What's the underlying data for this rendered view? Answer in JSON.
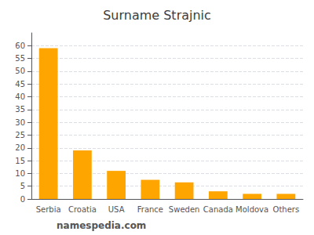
{
  "chart_data": {
    "type": "bar",
    "title": "Surname Strajnic",
    "categories": [
      "Serbia",
      "Croatia",
      "USA",
      "France",
      "Sweden",
      "Canada",
      "Moldova",
      "Others"
    ],
    "values": [
      59,
      19,
      11,
      7.5,
      6.5,
      3,
      2,
      2
    ],
    "color": "#FFA500",
    "ylim": [
      0,
      65
    ],
    "yticks": [
      0,
      5,
      10,
      15,
      20,
      25,
      30,
      35,
      40,
      45,
      50,
      55,
      60
    ],
    "grid": true,
    "annotations": [
      "namespedia.com"
    ]
  }
}
